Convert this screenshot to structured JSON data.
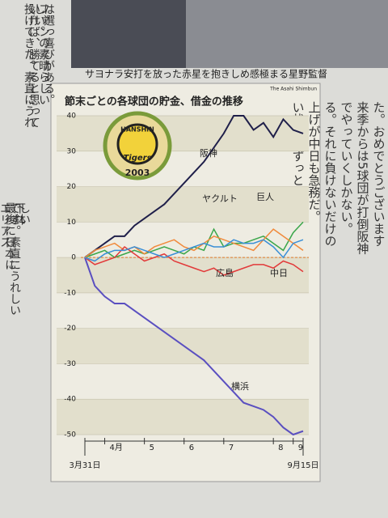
{
  "caption": "サヨナラ安打を放った赤星を抱きしめ感極まる星野監督",
  "credit": "The Asahi Shimbun",
  "left_column": [
    "は選っ喜びがある。",
    "ファンの素晴らしい",
    "しい。",
    "いけば、勝てると思って",
    "投げてきた。素直にうれ",
    "しい",
    "下鉢",
    "です。素直にうれしい",
    "最後に日本に",
    "エリアス"
  ],
  "right_column": [
    "た。おめでとうございます",
    "来季からは5球団が打倒阪神",
    "でやっていくしかない。",
    "る。それに負けないだけの",
    "上げが中日も急務だ。",
    "い状態がずっと"
  ],
  "logo": {
    "top": "HANSHIN",
    "name": "Tigers",
    "year": "2003"
  },
  "chart_data": {
    "type": "line",
    "title": "節末ごとの各球団の貯金、借金の推移",
    "categories": [
      "3月31日",
      null,
      "4月",
      null,
      null,
      null,
      "5",
      null,
      null,
      null,
      "6",
      null,
      null,
      null,
      "7",
      null,
      null,
      null,
      null,
      "8",
      null,
      "9",
      "9月15日"
    ],
    "ylim": [
      -50,
      40
    ],
    "yticks": [
      -50,
      -40,
      -30,
      -20,
      -10,
      0,
      10,
      20,
      30,
      40
    ],
    "grid": true,
    "series": [
      {
        "name": "阪神",
        "color": "#1f1f4a",
        "values": [
          0,
          2,
          4,
          6,
          6,
          9,
          11,
          13,
          15,
          18,
          21,
          24,
          27,
          31,
          35,
          40,
          40,
          36,
          38,
          34,
          39,
          36,
          35
        ]
      },
      {
        "name": "横浜",
        "color": "#5a4fc0",
        "values": [
          0,
          -8,
          -11,
          -13,
          -13,
          -15,
          -17,
          -19,
          -21,
          -23,
          -25,
          -27,
          -29,
          -32,
          -35,
          -38,
          -41,
          -42,
          -43,
          -45,
          -48,
          -50,
          -49
        ]
      },
      {
        "name": "ヤクルト",
        "color": "#3aa64a",
        "values": [
          0,
          1,
          2,
          0,
          1,
          2,
          1,
          2,
          3,
          2,
          1,
          3,
          2,
          8,
          3,
          4,
          4,
          5,
          6,
          4,
          2,
          7,
          10
        ]
      },
      {
        "name": "巨人",
        "color": "#f08a3c",
        "values": [
          0,
          2,
          3,
          4,
          2,
          3,
          1,
          3,
          4,
          5,
          3,
          2,
          4,
          6,
          5,
          4,
          3,
          2,
          5,
          8,
          6,
          4,
          2
        ]
      },
      {
        "name": "広島",
        "color": "#e23a3a",
        "values": [
          0,
          -2,
          -1,
          0,
          3,
          1,
          -1,
          0,
          1,
          -1,
          -2,
          -3,
          -4,
          -3,
          -5,
          -4,
          -3,
          -2,
          -2,
          -3,
          -1,
          -2,
          -4
        ]
      },
      {
        "name": "中日",
        "color": "#3a8fd6",
        "values": [
          0,
          -1,
          1,
          2,
          2,
          3,
          2,
          1,
          0,
          1,
          2,
          3,
          4,
          3,
          3,
          5,
          4,
          4,
          5,
          3,
          0,
          4,
          5
        ]
      }
    ]
  }
}
